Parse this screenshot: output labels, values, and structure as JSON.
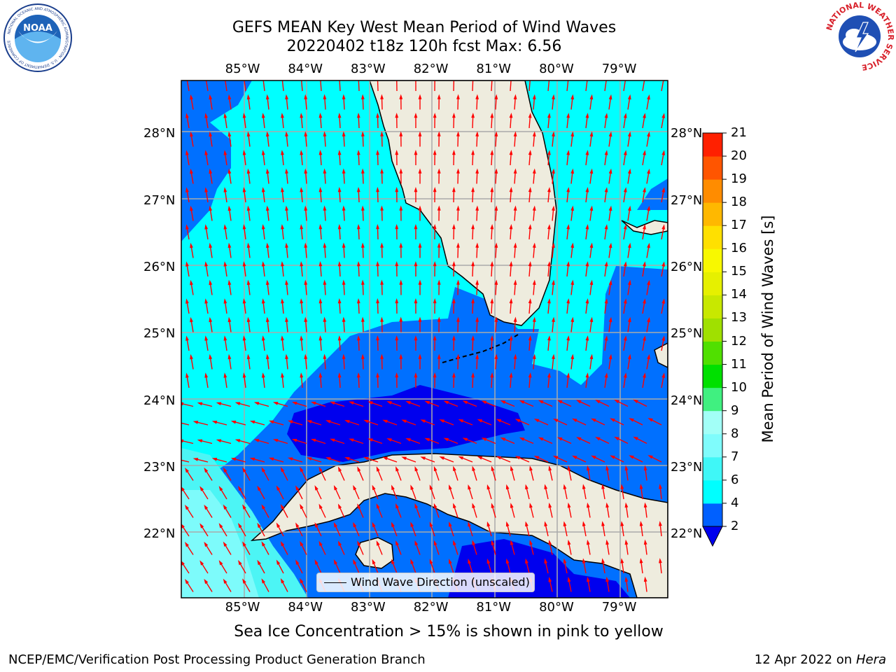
{
  "header": {
    "title_line1": "GEFS MEAN Key West Mean Period of Wind Waves",
    "title_line2": "20220402 t18z 120h fcst   Max: 6.56"
  },
  "logos": {
    "noaa": {
      "text": "NOAA",
      "ring_text": "NATIONAL OCEANIC AND ATMOSPHERIC ADMINISTRATION · U.S. DEPARTMENT OF COMMERCE"
    },
    "nws": {
      "ring_text": "NATIONAL WEATHER SERVICE"
    }
  },
  "map": {
    "lon_labels": [
      "85°W",
      "84°W",
      "83°W",
      "82°W",
      "81°W",
      "80°W",
      "79°W"
    ],
    "lat_labels": [
      "28°N",
      "27°N",
      "26°N",
      "25°N",
      "24°N",
      "23°N",
      "22°N"
    ],
    "lon_range": [
      -86.0,
      -78.25
    ],
    "lat_range": [
      21.05,
      28.8
    ],
    "land_color": "#eeecde",
    "arrow_color": "#ff0000"
  },
  "colorbar": {
    "title": "Mean Period of Wind Waves [s]",
    "ticks": [
      "2",
      "4",
      "6",
      "7",
      "8",
      "9",
      "10",
      "11",
      "12",
      "13",
      "14",
      "15",
      "16",
      "17",
      "18",
      "19",
      "20",
      "21"
    ],
    "colors": [
      "#0060ff",
      "#00ffff",
      "#3ff7f7",
      "#7ffcfc",
      "#a2fff7",
      "#40f080",
      "#00e000",
      "#50e000",
      "#a0e000",
      "#c8e800",
      "#e6f000",
      "#f8f800",
      "#ffe000",
      "#ffb800",
      "#ff8c00",
      "#ff5500",
      "#ff2000"
    ],
    "under_color": "#0000ee"
  },
  "legend": {
    "label": "Wind Wave Direction (unscaled)"
  },
  "notes": {
    "sea_ice": "Sea Ice Concentration > 15% is shown in pink to yellow",
    "footer_left": "NCEP/EMC/Verification Post Processing Product Generation Branch",
    "footer_date": "12 Apr 2022 on",
    "footer_host": "Hera"
  }
}
